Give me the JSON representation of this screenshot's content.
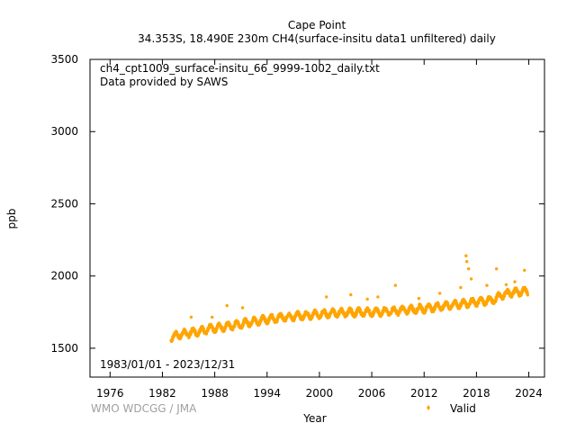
{
  "header": {
    "station": "Cape Point",
    "subtitle": "34.353S, 18.490E 230m    CH4(surface-insitu data1 unfiltered) daily"
  },
  "info": {
    "filename": "ch4_cpt1009_surface-insitu_66_9999-1002_daily.txt",
    "provider": "Data provided by SAWS",
    "period": "1983/01/01 - 2023/12/31"
  },
  "credit": "WMO WDCGG / JMA",
  "chart_data": {
    "type": "scatter",
    "title": "Cape Point",
    "xlabel": "Year",
    "ylabel": "ppb",
    "xlim": [
      1973.7,
      2025.8
    ],
    "ylim": [
      1300,
      3500
    ],
    "x_ticks": [
      "1976",
      "1982",
      "1988",
      "1994",
      "2000",
      "2006",
      "2012",
      "2018",
      "2024"
    ],
    "y_ticks": [
      "1500",
      "2000",
      "2500",
      "3000",
      "3500"
    ],
    "grid": false,
    "legend": {
      "position": "bottom-right",
      "entries": [
        "Valid"
      ]
    },
    "series": [
      {
        "name": "Valid",
        "color": "#ffa500",
        "baseline_x": [
          1983.0,
          1984.0,
          1986.0,
          1988.0,
          1990.0,
          1992.0,
          1994.0,
          1996.0,
          1998.0,
          2000.0,
          2002.0,
          2004.0,
          2006.0,
          2008.0,
          2010.0,
          2012.0,
          2014.0,
          2016.0,
          2018.0,
          2020.0,
          2021.0,
          2022.0,
          2023.9
        ],
        "baseline_y": [
          1575,
          1595,
          1615,
          1640,
          1655,
          1680,
          1700,
          1715,
          1725,
          1735,
          1745,
          1748,
          1750,
          1755,
          1765,
          1775,
          1790,
          1805,
          1820,
          1835,
          1870,
          1885,
          1895
        ],
        "seasonal_amplitude_ppb": 22,
        "spikes": [
          {
            "x": 1985.3,
            "y": 1715
          },
          {
            "x": 1987.7,
            "y": 1715
          },
          {
            "x": 1989.4,
            "y": 1795
          },
          {
            "x": 1991.2,
            "y": 1780
          },
          {
            "x": 2000.8,
            "y": 1855
          },
          {
            "x": 2003.6,
            "y": 1870
          },
          {
            "x": 2005.5,
            "y": 1840
          },
          {
            "x": 2006.7,
            "y": 1855
          },
          {
            "x": 2008.7,
            "y": 1935
          },
          {
            "x": 2011.4,
            "y": 1845
          },
          {
            "x": 2013.8,
            "y": 1880
          },
          {
            "x": 2016.2,
            "y": 1920
          },
          {
            "x": 2016.8,
            "y": 2140
          },
          {
            "x": 2016.9,
            "y": 2100
          },
          {
            "x": 2017.1,
            "y": 2050
          },
          {
            "x": 2017.4,
            "y": 1980
          },
          {
            "x": 2019.2,
            "y": 1935
          },
          {
            "x": 2020.3,
            "y": 2050
          },
          {
            "x": 2021.4,
            "y": 1940
          },
          {
            "x": 2022.4,
            "y": 1960
          },
          {
            "x": 2023.5,
            "y": 2040
          }
        ]
      }
    ]
  }
}
